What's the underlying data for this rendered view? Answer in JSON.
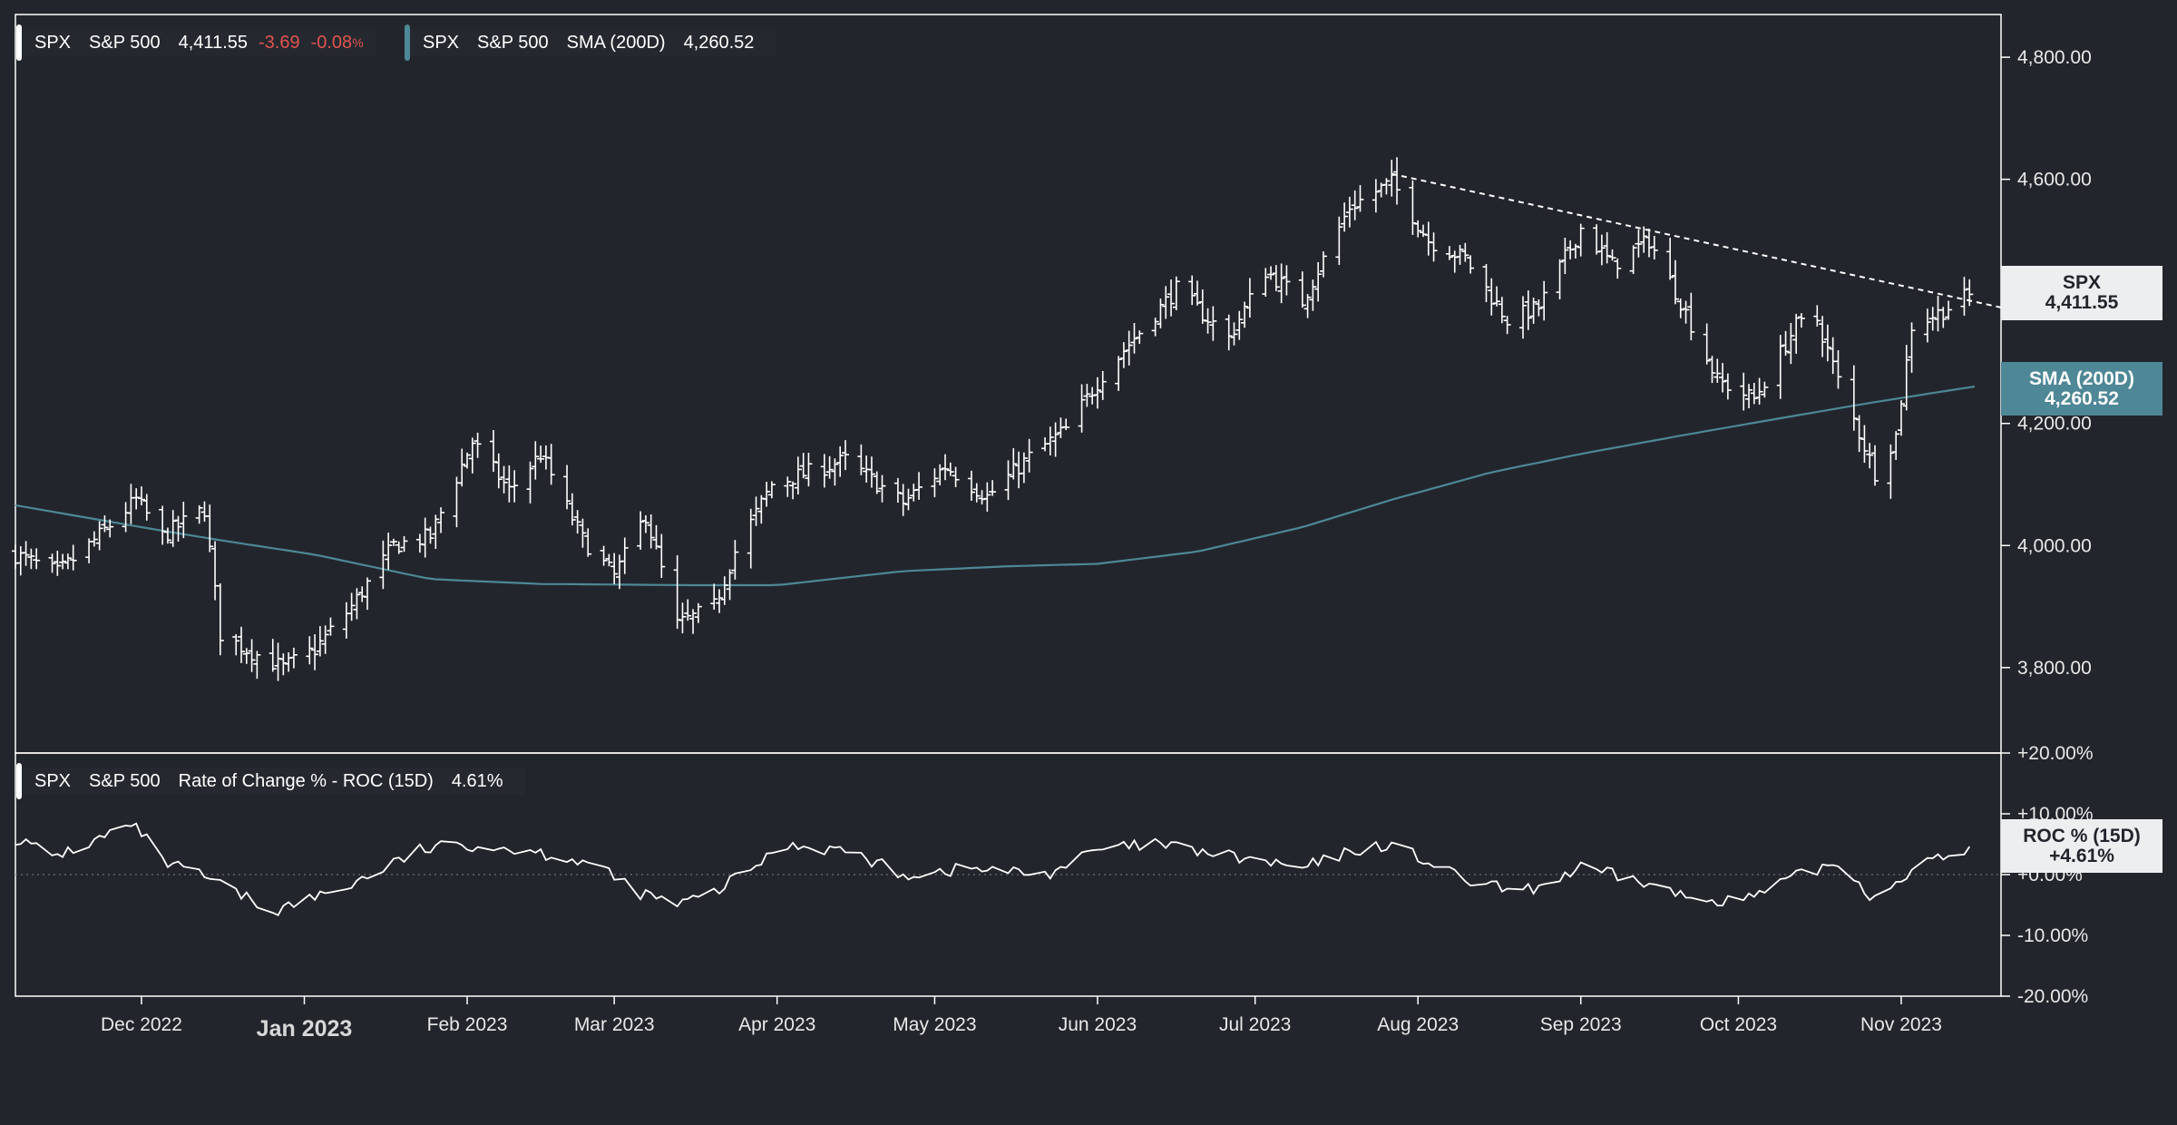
{
  "chart_data": [
    {
      "type": "line",
      "subtype": "ohlc-bars",
      "ticker": "SPX",
      "name": "S&P 500",
      "last": "4,411.55",
      "change": "-3.69",
      "change_pct": "-0.08",
      "change_pct_unit": "%",
      "ylim": [
        3660,
        4870
      ],
      "y_ticks": [
        "4,800.00",
        "4,600.00",
        "4,200.00",
        "4,000.00",
        "3,800.00"
      ],
      "y_tick_values": [
        4800,
        4600,
        4200,
        4000,
        3800
      ],
      "x_ticks": [
        "Dec 2022",
        "Jan 2023",
        "Feb 2023",
        "Mar 2023",
        "Apr 2023",
        "May 2023",
        "Jun 2023",
        "Jul 2023",
        "Aug 2023",
        "Sep 2023",
        "Oct 2023",
        "Nov 2023"
      ],
      "x_tick_dates": [
        "2022-12-01",
        "2023-01-01",
        "2023-02-01",
        "2023-03-01",
        "2023-04-01",
        "2023-05-01",
        "2023-06-01",
        "2023-07-01",
        "2023-08-01",
        "2023-09-01",
        "2023-10-01",
        "2023-11-01"
      ],
      "x_range": [
        "2022-11-07",
        "2023-11-20"
      ],
      "price_keypoints": [
        [
          "2022-11-07",
          3985
        ],
        [
          "2022-11-15",
          3955
        ],
        [
          "2022-11-21",
          4000
        ],
        [
          "2022-11-30",
          4075
        ],
        [
          "2022-12-05",
          4015
        ],
        [
          "2022-12-13",
          4060
        ],
        [
          "2022-12-16",
          3855
        ],
        [
          "2022-12-22",
          3825
        ],
        [
          "2022-12-28",
          3800
        ],
        [
          "2023-01-03",
          3830
        ],
        [
          "2023-01-10",
          3900
        ],
        [
          "2023-01-18",
          4000
        ],
        [
          "2023-01-25",
          4015
        ],
        [
          "2023-02-02",
          4170
        ],
        [
          "2023-02-09",
          4090
        ],
        [
          "2023-02-15",
          4150
        ],
        [
          "2023-02-23",
          4010
        ],
        [
          "2023-03-01",
          3950
        ],
        [
          "2023-03-07",
          4050
        ],
        [
          "2023-03-13",
          3870
        ],
        [
          "2023-03-20",
          3900
        ],
        [
          "2023-03-24",
          3990
        ],
        [
          "2023-03-31",
          4100
        ],
        [
          "2023-04-14",
          4140
        ],
        [
          "2023-04-25",
          4070
        ],
        [
          "2023-05-03",
          4130
        ],
        [
          "2023-05-11",
          4080
        ],
        [
          "2023-05-19",
          4145
        ],
        [
          "2023-05-26",
          4190
        ],
        [
          "2023-06-02",
          4280
        ],
        [
          "2023-06-16",
          4420
        ],
        [
          "2023-06-26",
          4340
        ],
        [
          "2023-07-03",
          4450
        ],
        [
          "2023-07-10",
          4400
        ],
        [
          "2023-07-19",
          4555
        ],
        [
          "2023-07-27",
          4595
        ],
        [
          "2023-08-03",
          4500
        ],
        [
          "2023-08-10",
          4470
        ],
        [
          "2023-08-18",
          4370
        ],
        [
          "2023-08-24",
          4390
        ],
        [
          "2023-09-01",
          4520
        ],
        [
          "2023-09-07",
          4460
        ],
        [
          "2023-09-14",
          4500
        ],
        [
          "2023-09-20",
          4400
        ],
        [
          "2023-09-27",
          4270
        ],
        [
          "2023-10-04",
          4240
        ],
        [
          "2023-10-12",
          4360
        ],
        [
          "2023-10-16",
          4370
        ],
        [
          "2023-10-20",
          4270
        ],
        [
          "2023-10-27",
          4120
        ],
        [
          "2023-10-31",
          4180
        ],
        [
          "2023-11-03",
          4360
        ],
        [
          "2023-11-09",
          4385
        ],
        [
          "2023-11-14",
          4411.55
        ]
      ],
      "trendline": {
        "from": [
          "2023-07-27",
          4609
        ],
        "to": [
          "2023-11-20",
          4390
        ],
        "style": "dashed"
      },
      "sma": {
        "ticker": "SPX",
        "name": "S&P 500",
        "label": "SMA (200D)",
        "value": "4,260.52",
        "tag_label": "SMA (200D)",
        "color": "#4e8796",
        "keypoints": [
          [
            "2022-11-07",
            4066
          ],
          [
            "2022-12-01",
            4030
          ],
          [
            "2022-12-15",
            4010
          ],
          [
            "2023-01-03",
            3985
          ],
          [
            "2023-01-25",
            3945
          ],
          [
            "2023-02-15",
            3937
          ],
          [
            "2023-03-15",
            3935
          ],
          [
            "2023-04-01",
            3935
          ],
          [
            "2023-04-25",
            3958
          ],
          [
            "2023-05-15",
            3966
          ],
          [
            "2023-06-01",
            3970
          ],
          [
            "2023-06-20",
            3990
          ],
          [
            "2023-07-10",
            4030
          ],
          [
            "2023-07-27",
            4075
          ],
          [
            "2023-08-15",
            4120
          ],
          [
            "2023-09-01",
            4150
          ],
          [
            "2023-09-20",
            4180
          ],
          [
            "2023-10-10",
            4210
          ],
          [
            "2023-10-27",
            4235
          ],
          [
            "2023-11-15",
            4260.52
          ]
        ]
      },
      "price_tag": {
        "ticker": "SPX",
        "value": "4,411.55"
      }
    },
    {
      "type": "line",
      "ticker": "SPX",
      "name": "S&P 500",
      "label": "Rate of Change % - ROC (15D)",
      "value": "4.61%",
      "tag_label": "ROC % (15D)",
      "tag_value": "+4.61%",
      "ylim": [
        -20,
        20
      ],
      "y_ticks": [
        "+20.00%",
        "+10.00%",
        "+0.00%",
        "-10.00%",
        "-20.00%"
      ],
      "y_tick_values": [
        20,
        10,
        0,
        -10,
        -20
      ],
      "zero_line": "dotted",
      "keypoints": [
        [
          "2022-11-07",
          6
        ],
        [
          "2022-11-14",
          3
        ],
        [
          "2022-11-21",
          5
        ],
        [
          "2022-11-28",
          8
        ],
        [
          "2022-12-01",
          7
        ],
        [
          "2022-12-05",
          2
        ],
        [
          "2022-12-12",
          0
        ],
        [
          "2022-12-19",
          -3
        ],
        [
          "2022-12-26",
          -6
        ],
        [
          "2023-01-02",
          -4
        ],
        [
          "2023-01-09",
          -2
        ],
        [
          "2023-01-16",
          1
        ],
        [
          "2023-01-23",
          4
        ],
        [
          "2023-02-01",
          5
        ],
        [
          "2023-02-13",
          4
        ],
        [
          "2023-02-24",
          2
        ],
        [
          "2023-03-06",
          -3
        ],
        [
          "2023-03-13",
          -5
        ],
        [
          "2023-03-20",
          -3
        ],
        [
          "2023-03-27",
          1
        ],
        [
          "2023-04-03",
          5
        ],
        [
          "2023-04-14",
          4
        ],
        [
          "2023-04-25",
          0
        ],
        [
          "2023-05-08",
          1
        ],
        [
          "2023-05-22",
          0
        ],
        [
          "2023-06-01",
          4
        ],
        [
          "2023-06-12",
          5
        ],
        [
          "2023-06-26",
          3
        ],
        [
          "2023-07-10",
          1
        ],
        [
          "2023-07-20",
          4
        ],
        [
          "2023-07-27",
          5
        ],
        [
          "2023-08-10",
          -1
        ],
        [
          "2023-08-21",
          -3
        ],
        [
          "2023-09-01",
          1
        ],
        [
          "2023-09-12",
          -1
        ],
        [
          "2023-09-22",
          -4
        ],
        [
          "2023-10-03",
          -4
        ],
        [
          "2023-10-13",
          0
        ],
        [
          "2023-10-20",
          2
        ],
        [
          "2023-10-27",
          -4
        ],
        [
          "2023-11-03",
          1
        ],
        [
          "2023-11-10",
          3
        ],
        [
          "2023-11-14",
          4.61
        ]
      ]
    }
  ]
}
